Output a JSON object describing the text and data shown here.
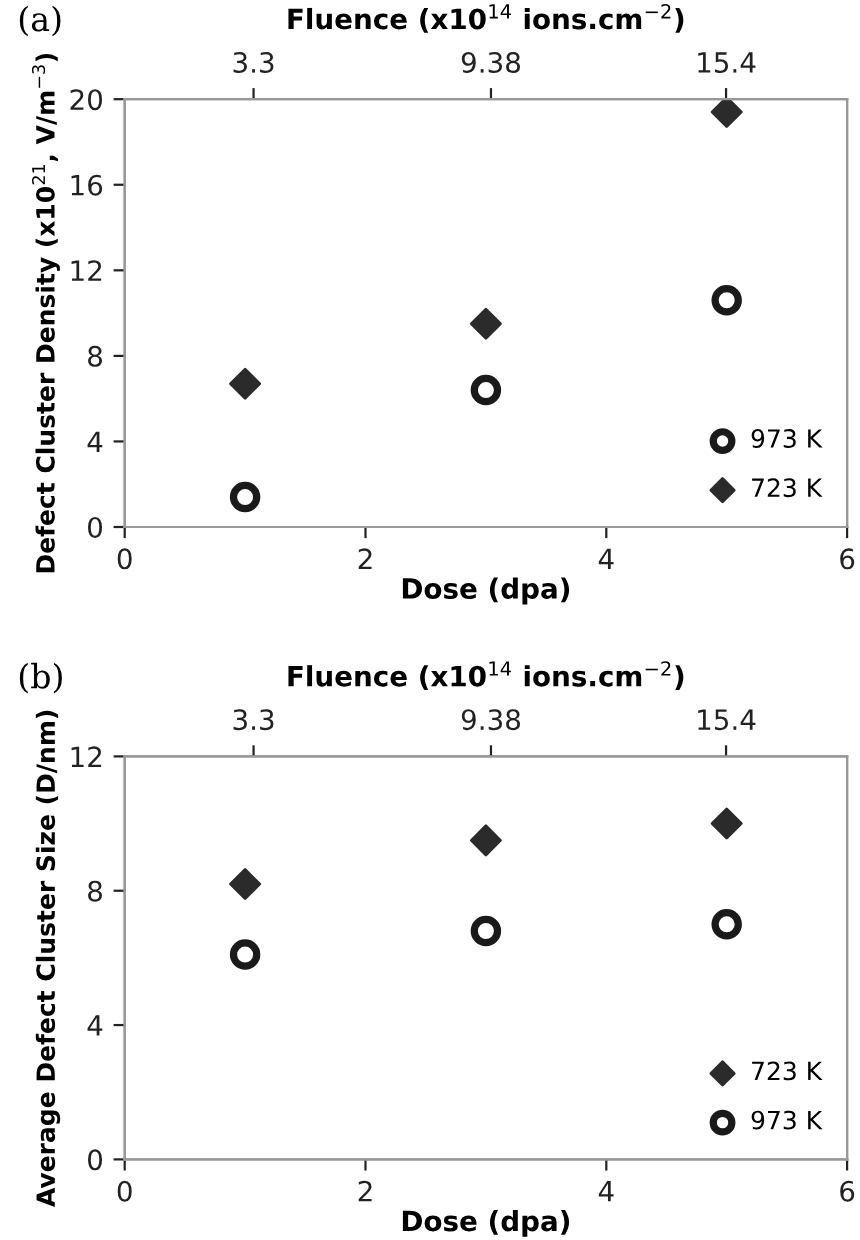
{
  "chart_data": [
    {
      "type": "scatter",
      "annotations": [
        "(a)"
      ],
      "x2label": "Fluence (x10$^{14}$ ions.cm$^{−2}$)",
      "xlabel": "Dose (dpa)",
      "ylabel": "Defect Cluster Density (x10$^{21}$, V/m$^{−3}$)",
      "x": [
        1,
        3,
        5
      ],
      "xlim": [
        0,
        6
      ],
      "xticks": [
        0,
        2,
        4,
        6
      ],
      "ylim": [
        0,
        20
      ],
      "yticks": [
        0,
        4,
        8,
        12,
        16,
        20
      ],
      "x2lim": [
        0,
        18.5
      ],
      "x2ticks": [
        3.3,
        9.38,
        15.4
      ],
      "grid": false,
      "legend": "bottom right",
      "series": [
        {
          "name": "973 K",
          "color": "#1a1a1a",
          "marker": "circle",
          "values": [
            1.4,
            6.4,
            10.6
          ]
        },
        {
          "name": "723 K",
          "color": "#2b2b2b",
          "marker": "diamond",
          "values": [
            6.7,
            9.5,
            19.4
          ]
        }
      ]
    },
    {
      "type": "scatter",
      "annotations": [
        "(b)"
      ],
      "x2label": "Fluence (x10$^{14}$ ions.cm$^{−2}$)",
      "xlabel": "Dose (dpa)",
      "ylabel": "Average Defect Cluster Size (D/nm)",
      "x": [
        1,
        3,
        5
      ],
      "xlim": [
        0,
        6
      ],
      "xticks": [
        0,
        2,
        4,
        6
      ],
      "ylim": [
        0,
        12
      ],
      "yticks": [
        0,
        4,
        8,
        12
      ],
      "x2lim": [
        0,
        18.5
      ],
      "x2ticks": [
        3.3,
        9.38,
        15.4
      ],
      "grid": false,
      "legend": "bottom right",
      "series": [
        {
          "name": "723 K",
          "color": "#2b2b2b",
          "marker": "diamond",
          "values": [
            8.2,
            9.5,
            10.0
          ]
        },
        {
          "name": "973 K",
          "color": "#1a1a1a",
          "marker": "circle",
          "values": [
            6.1,
            6.8,
            7.0
          ]
        }
      ]
    }
  ]
}
